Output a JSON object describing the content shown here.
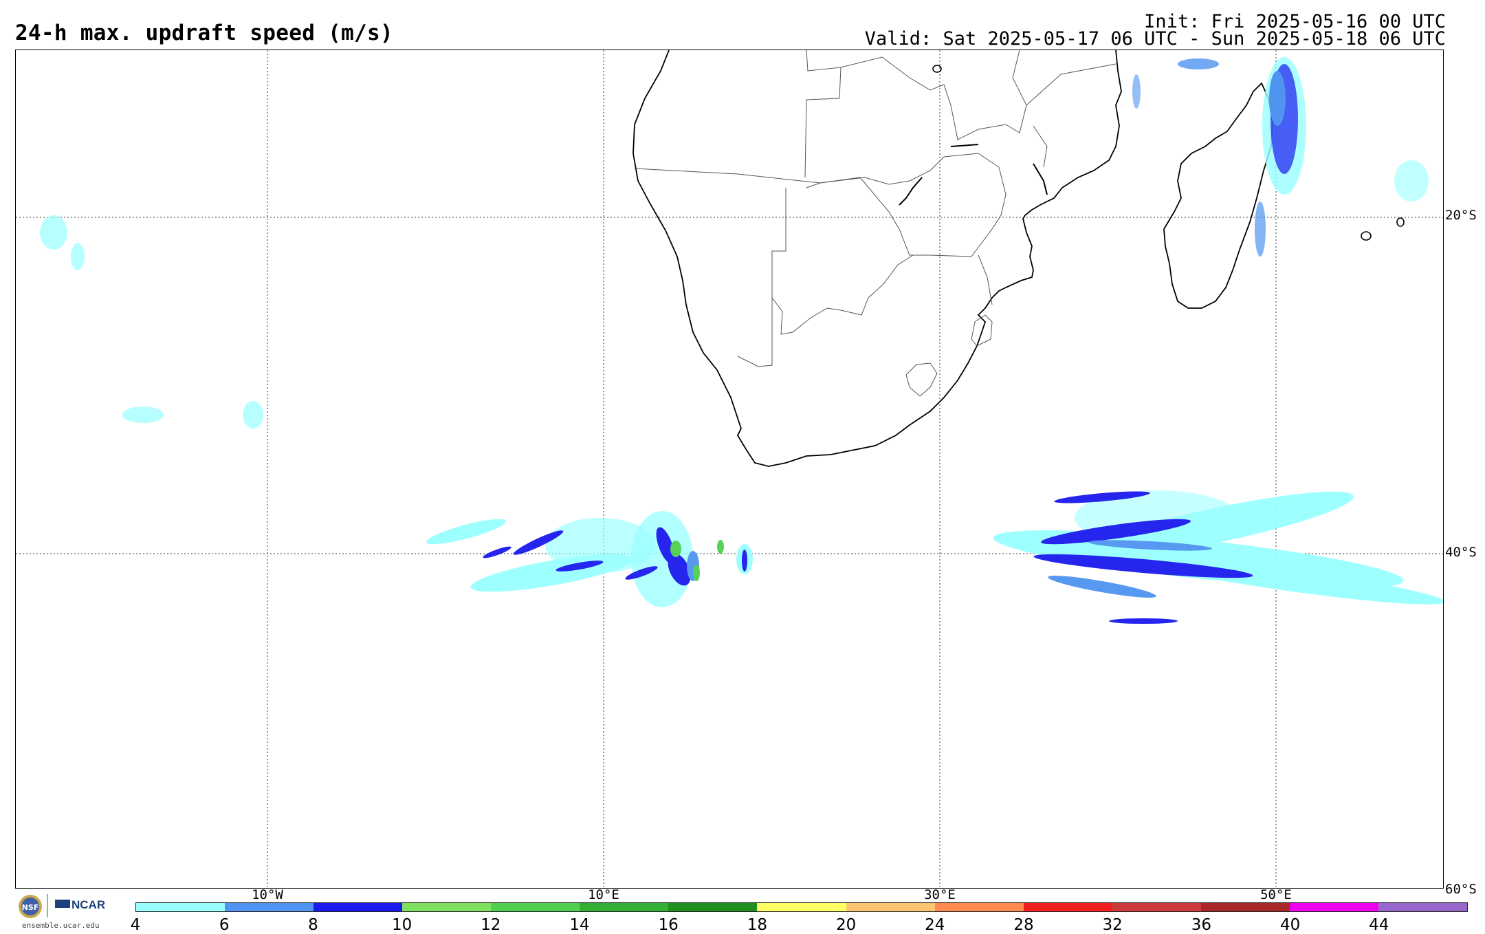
{
  "header": {
    "title": "24-h max. updraft speed (m/s)",
    "init": "Init: Fri 2025-05-16 00 UTC",
    "valid": "Valid: Sat 2025-05-17 06 UTC - Sun 2025-05-18 06 UTC"
  },
  "map": {
    "region": "Southern Africa and South Atlantic / South-West Indian Ocean",
    "lat_labels": [
      "20°S",
      "40°S",
      "60°S"
    ],
    "lon_labels": [
      "10°W",
      "10°E",
      "30°E",
      "50°E"
    ],
    "coastline_color": "#000000",
    "border_color": "#555555",
    "gridline_style": "dotted"
  },
  "colorbar": {
    "labels": [
      "4",
      "6",
      "8",
      "10",
      "12",
      "14",
      "16",
      "18",
      "20",
      "24",
      "28",
      "32",
      "36",
      "40",
      "44"
    ],
    "colors": [
      "#99ffff",
      "#4f94f0",
      "#1a1aee",
      "#80e060",
      "#4ed04e",
      "#33b033",
      "#1e901e",
      "#ffff66",
      "#ffc470",
      "#ff8a50",
      "#ee2020",
      "#cc3b3b",
      "#a82828",
      "#ee00ee",
      "#9966cc"
    ]
  },
  "footer": {
    "nsf": "NSF",
    "ncar": "NCAR",
    "url": "ensemble.ucar.edu"
  }
}
